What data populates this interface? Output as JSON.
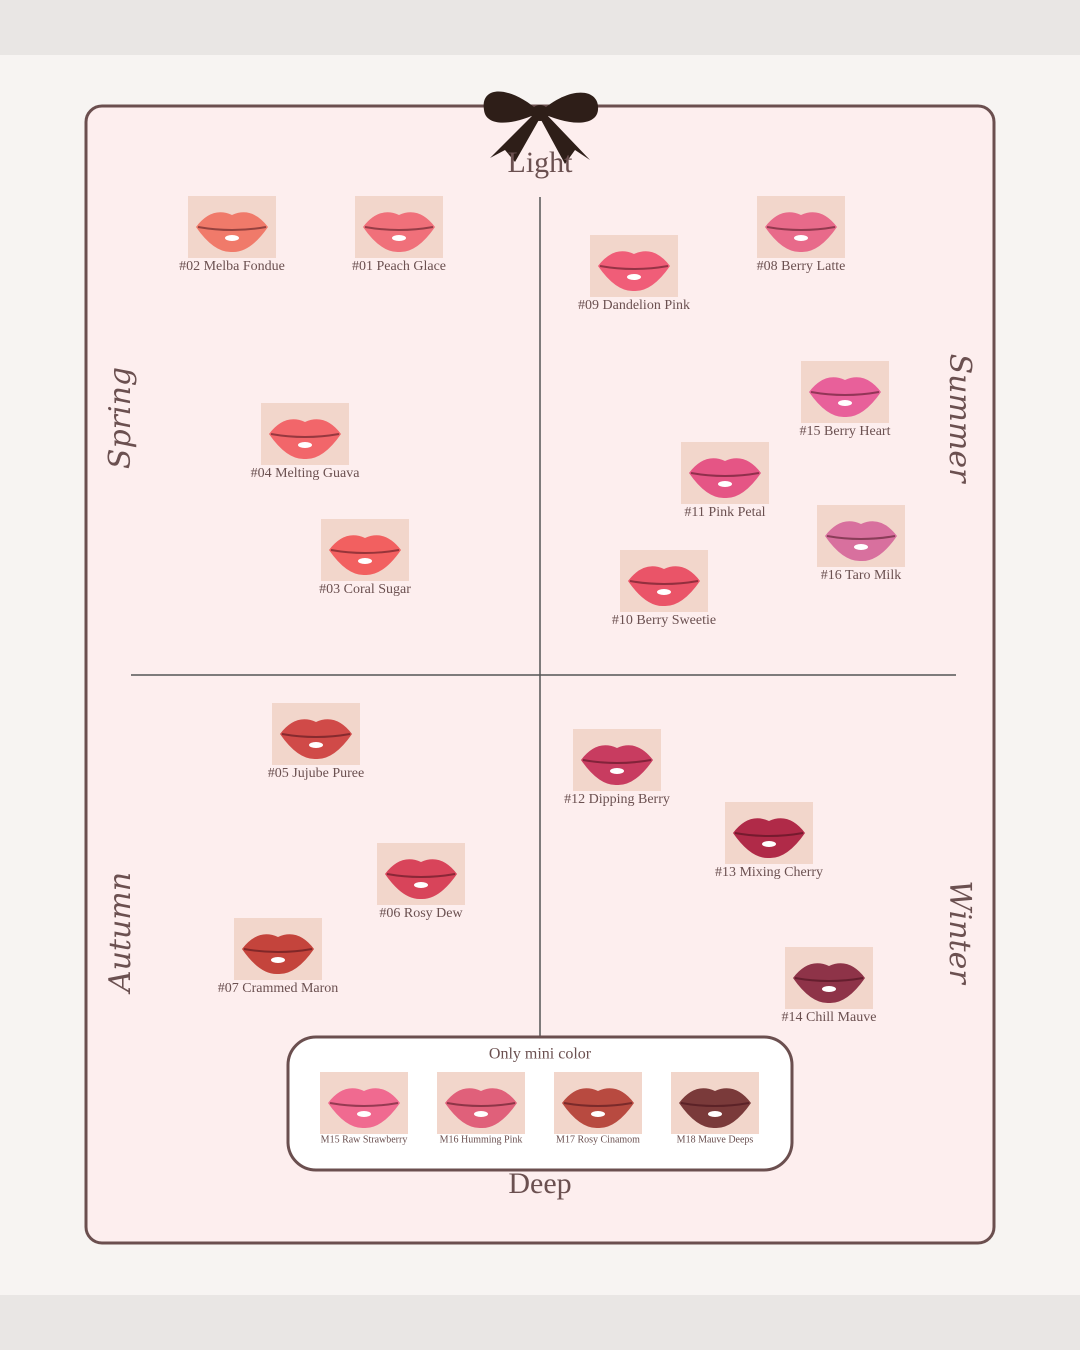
{
  "axis": {
    "top": "Light",
    "bottom": "Deep"
  },
  "seasons": [
    "Spring",
    "Summer",
    "Autumn",
    "Winter"
  ],
  "shades": [
    {
      "label": "#02 Melba Fondue",
      "color": "#f07a6a"
    },
    {
      "label": "#01 Peach Glace",
      "color": "#f0707a"
    },
    {
      "label": "#04 Melting Guava",
      "color": "#f2666a"
    },
    {
      "label": "#03 Coral Sugar",
      "color": "#f26060"
    },
    {
      "label": "#09 Dandelion Pink",
      "color": "#f05d78"
    },
    {
      "label": "#08 Berry Latte",
      "color": "#e86a8a"
    },
    {
      "label": "#15 Berry Heart",
      "color": "#e8609a"
    },
    {
      "label": "#11 Pink Petal",
      "color": "#e55585"
    },
    {
      "label": "#16 Taro Milk",
      "color": "#d8709e"
    },
    {
      "label": "#10 Berry Sweetie",
      "color": "#ea5468"
    },
    {
      "label": "#05 Jujube Puree",
      "color": "#d04a48"
    },
    {
      "label": "#06 Rosy Dew",
      "color": "#d8445a"
    },
    {
      "label": "#07 Crammed Maron",
      "color": "#c4443c"
    },
    {
      "label": "#12 Dipping Berry",
      "color": "#c83c60"
    },
    {
      "label": "#13 Mixing Cherry",
      "color": "#b02a48"
    },
    {
      "label": "#14 Chill Mauve",
      "color": "#8e3348"
    }
  ],
  "mini": {
    "title": "Only mini color",
    "shades": [
      {
        "label": "M15 Raw Strawberry",
        "color": "#f06a90"
      },
      {
        "label": "M16 Humming Pink",
        "color": "#e0607a"
      },
      {
        "label": "M17 Rosy Cinamom",
        "color": "#b84a40"
      },
      {
        "label": "M18 Mauve Deeps",
        "color": "#7a3a3a"
      }
    ]
  }
}
